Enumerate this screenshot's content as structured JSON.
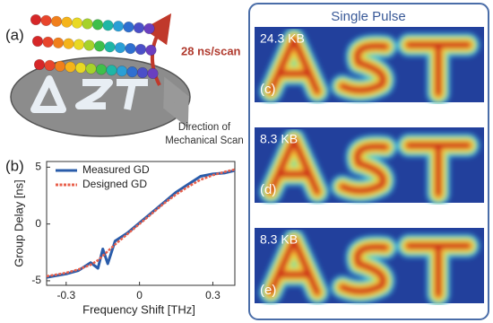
{
  "panel_a": {
    "label": "(a)",
    "speed": "28 ns/scan",
    "direction": [
      "Direction of",
      "Mechanical Scan"
    ]
  },
  "chart_data": {
    "type": "line",
    "label": "(b)",
    "xlabel": "Frequency Shift [THz]",
    "ylabel": "Group Delay [ns]",
    "xlim": [
      -0.38,
      0.39
    ],
    "ylim": [
      -5.4,
      5.5
    ],
    "xticks": [
      -0.3,
      0,
      0.3
    ],
    "yticks": [
      -5,
      0,
      5
    ],
    "x": [
      -0.38,
      -0.3,
      -0.25,
      -0.2,
      -0.17,
      -0.15,
      -0.13,
      -0.1,
      -0.05,
      0,
      0.05,
      0.1,
      0.15,
      0.2,
      0.25,
      0.3,
      0.35,
      0.39
    ],
    "series": [
      {
        "name": "Measured GD",
        "color": "#2a5caa",
        "dashed": false,
        "values": [
          -4.7,
          -4.4,
          -4.1,
          -3.4,
          -3.9,
          -2.2,
          -3.5,
          -1.5,
          -0.8,
          0.1,
          1.0,
          1.9,
          2.8,
          3.5,
          4.2,
          4.4,
          4.5,
          4.7
        ]
      },
      {
        "name": "Designed GD",
        "color": "#e8604c",
        "dashed": true,
        "values": [
          -4.6,
          -4.3,
          -4.0,
          -3.6,
          -3.2,
          -2.8,
          -2.4,
          -1.8,
          -0.9,
          0,
          0.9,
          1.8,
          2.6,
          3.3,
          3.9,
          4.3,
          4.6,
          4.8
        ]
      }
    ],
    "legend": "upper left"
  },
  "panel_right": {
    "title": "Single Pulse",
    "images": [
      {
        "label": "(c)",
        "size": "24.3 KB"
      },
      {
        "label": "(d)",
        "size": "8.3 KB"
      },
      {
        "label": "(e)",
        "size": "8.3 KB"
      }
    ]
  }
}
